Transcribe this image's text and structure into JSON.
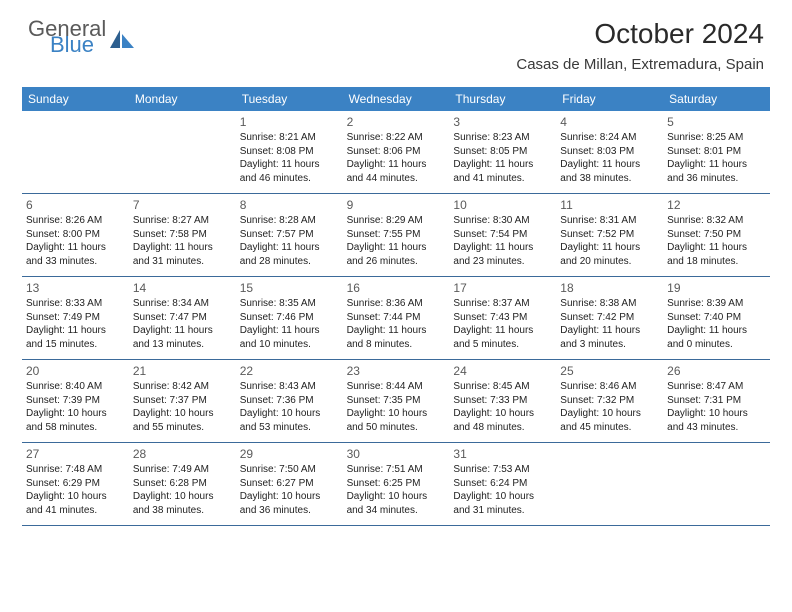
{
  "logo": {
    "general": "General",
    "blue": "Blue"
  },
  "title": "October 2024",
  "location": "Casas de Millan, Extremadura, Spain",
  "colors": {
    "header_bg": "#3b82c4",
    "header_text": "#ffffff",
    "divider": "#3b6a9a",
    "text": "#222222",
    "daynum": "#5a5a5a",
    "logo_gray": "#5a5a5a",
    "logo_blue": "#3b82c4"
  },
  "weekdays": [
    "Sunday",
    "Monday",
    "Tuesday",
    "Wednesday",
    "Thursday",
    "Friday",
    "Saturday"
  ],
  "weeks": [
    [
      null,
      null,
      {
        "n": "1",
        "sr": "8:21 AM",
        "ss": "8:08 PM",
        "dl": "11 hours and 46 minutes."
      },
      {
        "n": "2",
        "sr": "8:22 AM",
        "ss": "8:06 PM",
        "dl": "11 hours and 44 minutes."
      },
      {
        "n": "3",
        "sr": "8:23 AM",
        "ss": "8:05 PM",
        "dl": "11 hours and 41 minutes."
      },
      {
        "n": "4",
        "sr": "8:24 AM",
        "ss": "8:03 PM",
        "dl": "11 hours and 38 minutes."
      },
      {
        "n": "5",
        "sr": "8:25 AM",
        "ss": "8:01 PM",
        "dl": "11 hours and 36 minutes."
      }
    ],
    [
      {
        "n": "6",
        "sr": "8:26 AM",
        "ss": "8:00 PM",
        "dl": "11 hours and 33 minutes."
      },
      {
        "n": "7",
        "sr": "8:27 AM",
        "ss": "7:58 PM",
        "dl": "11 hours and 31 minutes."
      },
      {
        "n": "8",
        "sr": "8:28 AM",
        "ss": "7:57 PM",
        "dl": "11 hours and 28 minutes."
      },
      {
        "n": "9",
        "sr": "8:29 AM",
        "ss": "7:55 PM",
        "dl": "11 hours and 26 minutes."
      },
      {
        "n": "10",
        "sr": "8:30 AM",
        "ss": "7:54 PM",
        "dl": "11 hours and 23 minutes."
      },
      {
        "n": "11",
        "sr": "8:31 AM",
        "ss": "7:52 PM",
        "dl": "11 hours and 20 minutes."
      },
      {
        "n": "12",
        "sr": "8:32 AM",
        "ss": "7:50 PM",
        "dl": "11 hours and 18 minutes."
      }
    ],
    [
      {
        "n": "13",
        "sr": "8:33 AM",
        "ss": "7:49 PM",
        "dl": "11 hours and 15 minutes."
      },
      {
        "n": "14",
        "sr": "8:34 AM",
        "ss": "7:47 PM",
        "dl": "11 hours and 13 minutes."
      },
      {
        "n": "15",
        "sr": "8:35 AM",
        "ss": "7:46 PM",
        "dl": "11 hours and 10 minutes."
      },
      {
        "n": "16",
        "sr": "8:36 AM",
        "ss": "7:44 PM",
        "dl": "11 hours and 8 minutes."
      },
      {
        "n": "17",
        "sr": "8:37 AM",
        "ss": "7:43 PM",
        "dl": "11 hours and 5 minutes."
      },
      {
        "n": "18",
        "sr": "8:38 AM",
        "ss": "7:42 PM",
        "dl": "11 hours and 3 minutes."
      },
      {
        "n": "19",
        "sr": "8:39 AM",
        "ss": "7:40 PM",
        "dl": "11 hours and 0 minutes."
      }
    ],
    [
      {
        "n": "20",
        "sr": "8:40 AM",
        "ss": "7:39 PM",
        "dl": "10 hours and 58 minutes."
      },
      {
        "n": "21",
        "sr": "8:42 AM",
        "ss": "7:37 PM",
        "dl": "10 hours and 55 minutes."
      },
      {
        "n": "22",
        "sr": "8:43 AM",
        "ss": "7:36 PM",
        "dl": "10 hours and 53 minutes."
      },
      {
        "n": "23",
        "sr": "8:44 AM",
        "ss": "7:35 PM",
        "dl": "10 hours and 50 minutes."
      },
      {
        "n": "24",
        "sr": "8:45 AM",
        "ss": "7:33 PM",
        "dl": "10 hours and 48 minutes."
      },
      {
        "n": "25",
        "sr": "8:46 AM",
        "ss": "7:32 PM",
        "dl": "10 hours and 45 minutes."
      },
      {
        "n": "26",
        "sr": "8:47 AM",
        "ss": "7:31 PM",
        "dl": "10 hours and 43 minutes."
      }
    ],
    [
      {
        "n": "27",
        "sr": "7:48 AM",
        "ss": "6:29 PM",
        "dl": "10 hours and 41 minutes."
      },
      {
        "n": "28",
        "sr": "7:49 AM",
        "ss": "6:28 PM",
        "dl": "10 hours and 38 minutes."
      },
      {
        "n": "29",
        "sr": "7:50 AM",
        "ss": "6:27 PM",
        "dl": "10 hours and 36 minutes."
      },
      {
        "n": "30",
        "sr": "7:51 AM",
        "ss": "6:25 PM",
        "dl": "10 hours and 34 minutes."
      },
      {
        "n": "31",
        "sr": "7:53 AM",
        "ss": "6:24 PM",
        "dl": "10 hours and 31 minutes."
      },
      null,
      null
    ]
  ]
}
